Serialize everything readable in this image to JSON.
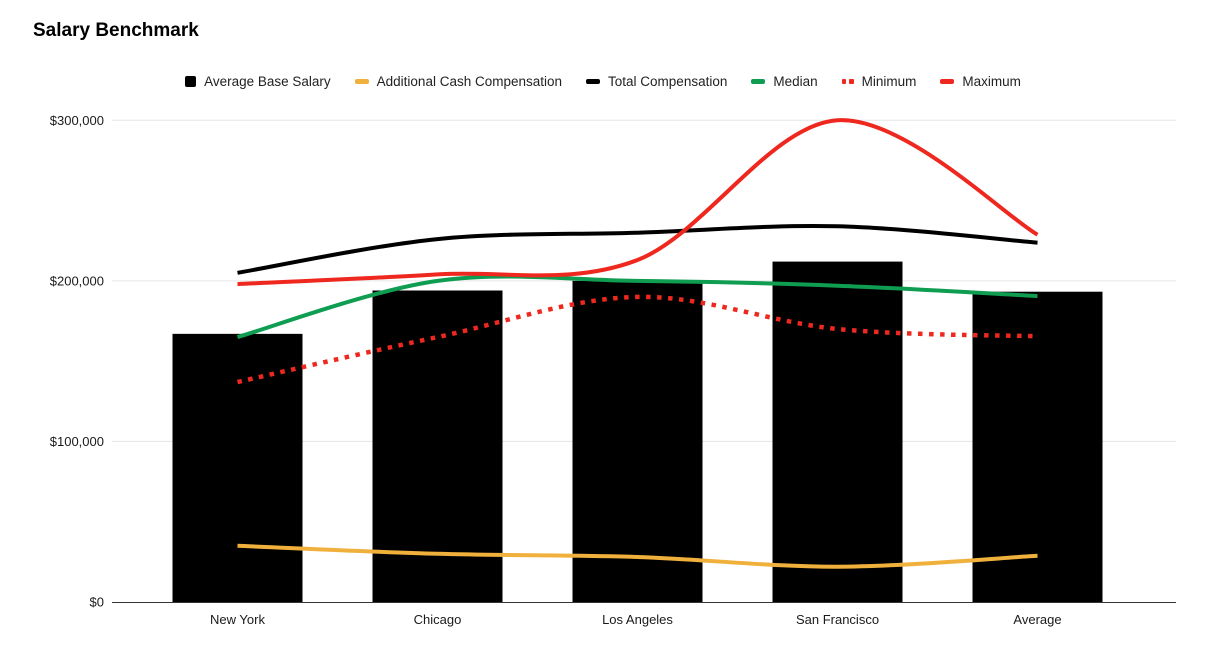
{
  "chart_data": {
    "type": "combo",
    "title": "Salary Benchmark",
    "categories": [
      "New York",
      "Chicago",
      "Los Angeles",
      "San Francisco",
      "Average"
    ],
    "series": [
      {
        "name": "Average Base Salary",
        "type": "bar",
        "style": "solid",
        "color": "#000000",
        "values": [
          167000,
          194000,
          200000,
          212000,
          193250
        ]
      },
      {
        "name": "Additional Cash Compensation",
        "type": "line",
        "style": "solid",
        "color": "#F0B03C",
        "values": [
          35000,
          30000,
          28000,
          22000,
          28750
        ]
      },
      {
        "name": "Total Compensation",
        "type": "line",
        "style": "solid",
        "color": "#000000",
        "values": [
          205000,
          226000,
          230000,
          234000,
          223750
        ]
      },
      {
        "name": "Median",
        "type": "line",
        "style": "solid",
        "color": "#0F9D51",
        "values": [
          165000,
          200000,
          200000,
          197000,
          190500
        ]
      },
      {
        "name": "Minimum",
        "type": "line",
        "style": "dotted",
        "color": "#EE281E",
        "values": [
          137000,
          165000,
          190000,
          170000,
          165500
        ]
      },
      {
        "name": "Maximum",
        "type": "line",
        "style": "solid",
        "color": "#EE281E",
        "values": [
          198000,
          204000,
          213000,
          300000,
          228750
        ]
      }
    ],
    "y_axis": {
      "min": 0,
      "max": 300000,
      "tick_labels": [
        "$0",
        "$100,000",
        "$200,000",
        "$300,000"
      ],
      "tick_values": [
        0,
        100000,
        200000,
        300000
      ]
    },
    "grid": true,
    "legend_position": "top",
    "colors": {
      "background": "#ffffff",
      "gridline": "#e6e6e6",
      "axis_line": "#333333",
      "axis_text": "#1a1a1a",
      "legend_text": "#222222"
    }
  }
}
